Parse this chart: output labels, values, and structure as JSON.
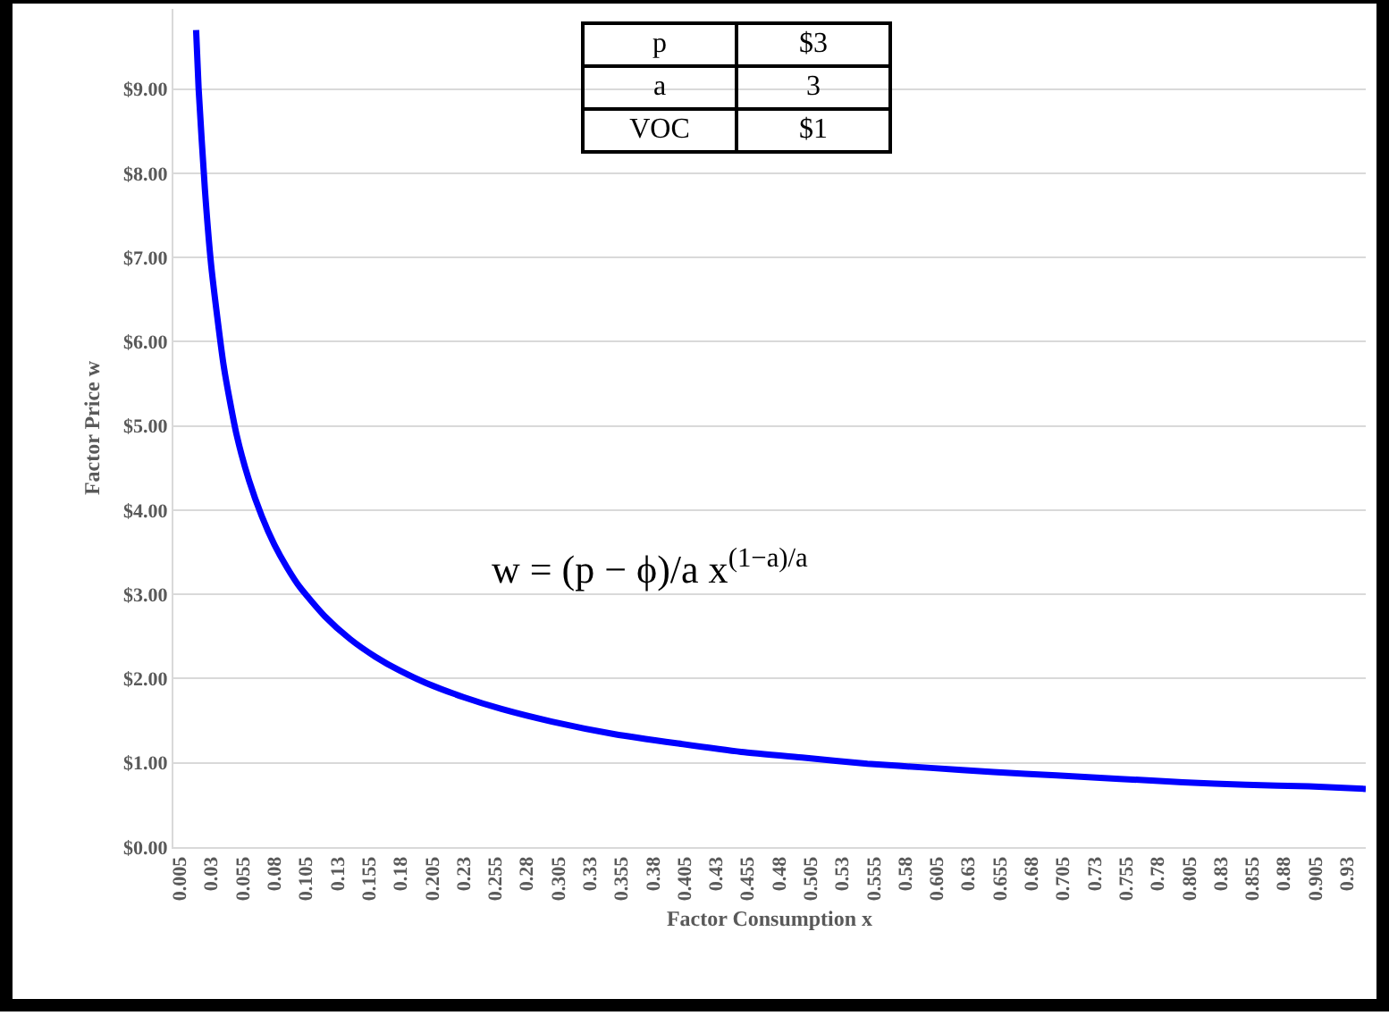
{
  "chart_data": {
    "type": "line",
    "xlabel": "Factor Consumption x",
    "ylabel": "Factor Price w",
    "x": [
      0.018,
      0.02,
      0.025,
      0.03,
      0.04,
      0.05,
      0.06,
      0.07,
      0.08,
      0.09,
      0.1,
      0.12,
      0.14,
      0.16,
      0.18,
      0.2,
      0.23,
      0.26,
      0.3,
      0.35,
      0.4,
      0.45,
      0.5,
      0.55,
      0.6,
      0.65,
      0.7,
      0.75,
      0.8,
      0.85,
      0.9,
      0.945
    ],
    "series": [
      {
        "color": "#0000ff",
        "values": [
          9.7,
          9.0,
          7.8,
          6.9,
          5.7,
          4.9,
          4.35,
          3.93,
          3.59,
          3.32,
          3.09,
          2.74,
          2.47,
          2.26,
          2.09,
          1.95,
          1.78,
          1.64,
          1.49,
          1.34,
          1.23,
          1.13,
          1.06,
          0.99,
          0.94,
          0.89,
          0.85,
          0.81,
          0.77,
          0.74,
          0.72,
          0.69
        ]
      }
    ],
    "xlim": [
      0,
      0.945
    ],
    "xticks": [
      0.005,
      0.03,
      0.055,
      0.08,
      0.105,
      0.13,
      0.155,
      0.18,
      0.205,
      0.23,
      0.255,
      0.28,
      0.305,
      0.33,
      0.355,
      0.38,
      0.405,
      0.43,
      0.455,
      0.48,
      0.505,
      0.53,
      0.555,
      0.58,
      0.605,
      0.63,
      0.655,
      0.68,
      0.705,
      0.73,
      0.755,
      0.78,
      0.805,
      0.83,
      0.855,
      0.88,
      0.905,
      0.93
    ],
    "ylim": [
      0,
      9.95
    ],
    "yticks": [
      {
        "value": 0,
        "label": "$0.00"
      },
      {
        "value": 1,
        "label": "$1.00"
      },
      {
        "value": 2,
        "label": "$2.00"
      },
      {
        "value": 3,
        "label": "$3.00"
      },
      {
        "value": 4,
        "label": "$4.00"
      },
      {
        "value": 5,
        "label": "$5.00"
      },
      {
        "value": 6,
        "label": "$6.00"
      },
      {
        "value": 7,
        "label": "$7.00"
      },
      {
        "value": 8,
        "label": "$8.00"
      },
      {
        "value": 9,
        "label": "$9.00"
      }
    ],
    "grid": "y",
    "marker": "none",
    "line_style": "solid",
    "annotations": [
      "p",
      "$3",
      "a",
      "3",
      "VOC",
      "$1",
      "w = (p − ϕ)/a x$^{(1−a)/a}$"
    ]
  }
}
